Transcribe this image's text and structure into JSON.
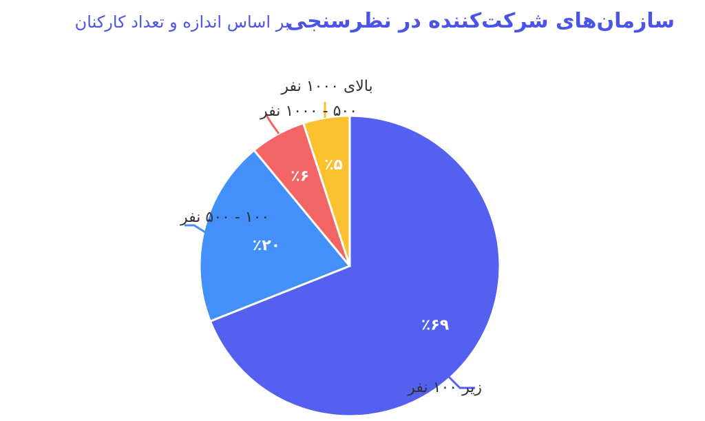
{
  "title": {
    "bold": "سازمان‌های شرکت‌کننده در نظرسنجی",
    "regular": "بر اساس اندازه و تعداد کارکنان"
  },
  "colors": {
    "title": "#4a55e8",
    "label": "#333333"
  },
  "chart_data": {
    "type": "pie",
    "categories": [
      "زیر ۱۰۰ نفر",
      "۱۰۰ - ۵۰۰ نفر",
      "۵۰۰ - ۱۰۰۰ نفر",
      "بالای ۱۰۰۰ نفر"
    ],
    "values": [
      69,
      20,
      6,
      5
    ],
    "value_labels": [
      "٪۶۹",
      "٪۲۰",
      "٪۶",
      "٪۵"
    ],
    "colors": [
      "#5461f0",
      "#4390fa",
      "#f36464",
      "#fbc02d"
    ],
    "start": "12 o'clock",
    "direction": "clockwise",
    "legend": "none"
  }
}
